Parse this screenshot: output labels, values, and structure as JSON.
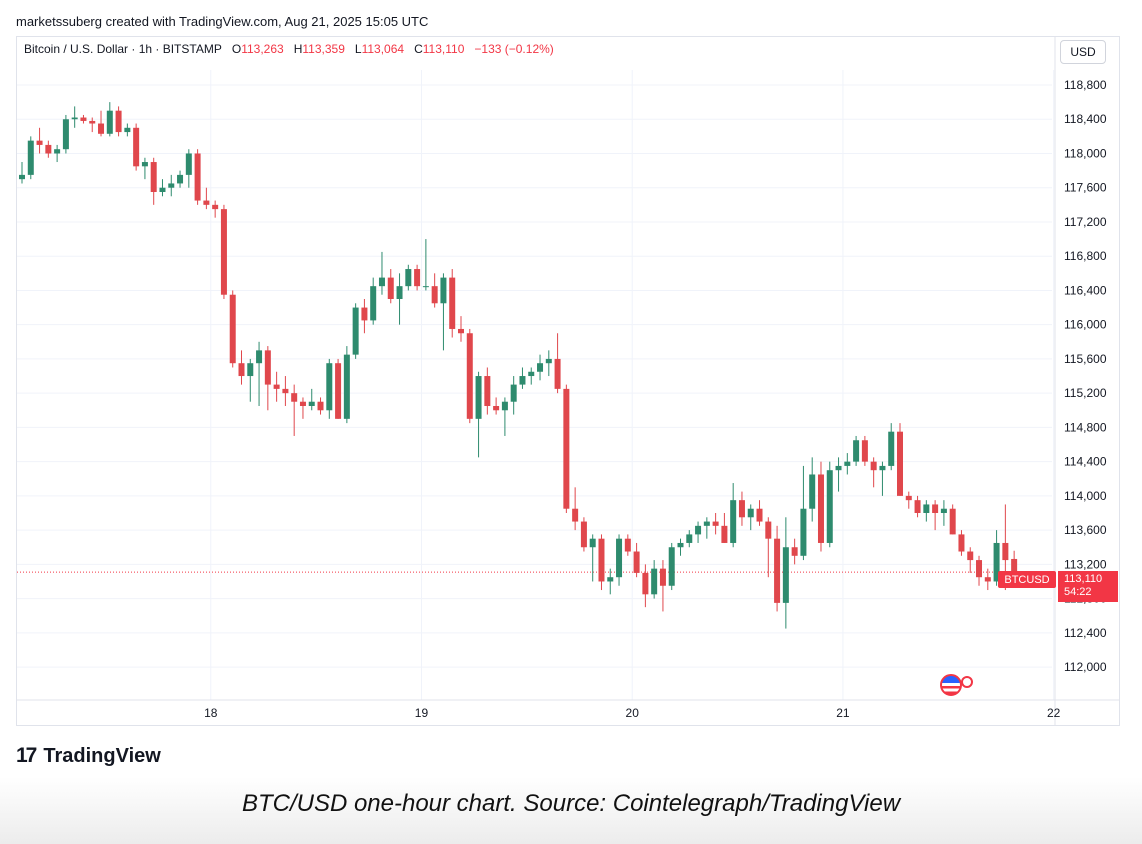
{
  "header": {
    "created_by": "marketssuberg created with TradingView.com, Aug 21, 2025 15:05 UTC"
  },
  "legend": {
    "symbol": "Bitcoin / U.S. Dollar · 1h · BITSTAMP",
    "o_label": "O",
    "o_value": "113,263",
    "h_label": "H",
    "h_value": "113,359",
    "l_label": "L",
    "l_value": "113,064",
    "c_label": "C",
    "c_value": "113,110",
    "change": "−133 (−0.12%)"
  },
  "currency_button": "USD",
  "last_price": {
    "symbol": "BTCUSD",
    "price": "113,110",
    "countdown": "54:22"
  },
  "branding": {
    "logo_mark": "17",
    "logo_text": "TradingView"
  },
  "caption": "BTC/USD one-hour chart. Source: Cointelegraph/TradingView",
  "colors": {
    "up": "#26a69a",
    "down": "#ef5350",
    "up_body": "#2e8b6e",
    "down_body": "#e0474c",
    "grid": "#f0f3fa",
    "text": "#131722"
  },
  "icons": {
    "event_icon": "us-flag-icon"
  },
  "chart_data": {
    "type": "candlestick",
    "title": "",
    "xlabel": "",
    "ylabel": "",
    "ylim": [
      111700,
      119200
    ],
    "y_ticks": [
      112000,
      112400,
      112800,
      113200,
      113600,
      114000,
      114400,
      114800,
      115200,
      115600,
      116000,
      116400,
      116800,
      117200,
      117600,
      118000,
      118400,
      118800
    ],
    "y_tick_labels": [
      "112,000",
      "112,400",
      "112,800",
      "113,200",
      "113,600",
      "114,000",
      "114,400",
      "114,800",
      "115,200",
      "115,600",
      "116,000",
      "116,400",
      "116,800",
      "117,200",
      "117,600",
      "118,000",
      "118,400",
      "118,800"
    ],
    "x_ticks": [
      {
        "label": "18",
        "index": 21.5
      },
      {
        "label": "19",
        "index": 45.5
      },
      {
        "label": "20",
        "index": 69.5
      },
      {
        "label": "21",
        "index": 93.5
      },
      {
        "label": "22",
        "index": 117.5
      }
    ],
    "last_close": 113110,
    "candles": [
      {
        "o": 117700,
        "h": 117900,
        "l": 117650,
        "c": 117750
      },
      {
        "o": 117750,
        "h": 118200,
        "l": 117700,
        "c": 118150
      },
      {
        "o": 118150,
        "h": 118300,
        "l": 118000,
        "c": 118100
      },
      {
        "o": 118100,
        "h": 118150,
        "l": 117950,
        "c": 118000
      },
      {
        "o": 118000,
        "h": 118100,
        "l": 117900,
        "c": 118050
      },
      {
        "o": 118050,
        "h": 118450,
        "l": 118000,
        "c": 118400
      },
      {
        "o": 118400,
        "h": 118550,
        "l": 118300,
        "c": 118420
      },
      {
        "o": 118420,
        "h": 118450,
        "l": 118350,
        "c": 118380
      },
      {
        "o": 118380,
        "h": 118420,
        "l": 118250,
        "c": 118350
      },
      {
        "o": 118350,
        "h": 118500,
        "l": 118200,
        "c": 118230
      },
      {
        "o": 118230,
        "h": 118600,
        "l": 118200,
        "c": 118500
      },
      {
        "o": 118500,
        "h": 118550,
        "l": 118200,
        "c": 118250
      },
      {
        "o": 118250,
        "h": 118350,
        "l": 118200,
        "c": 118300
      },
      {
        "o": 118300,
        "h": 118350,
        "l": 117800,
        "c": 117850
      },
      {
        "o": 117850,
        "h": 117950,
        "l": 117700,
        "c": 117900
      },
      {
        "o": 117900,
        "h": 117950,
        "l": 117400,
        "c": 117550
      },
      {
        "o": 117550,
        "h": 117700,
        "l": 117500,
        "c": 117600
      },
      {
        "o": 117600,
        "h": 117750,
        "l": 117500,
        "c": 117650
      },
      {
        "o": 117650,
        "h": 117800,
        "l": 117600,
        "c": 117750
      },
      {
        "o": 117750,
        "h": 118050,
        "l": 117600,
        "c": 118000
      },
      {
        "o": 118000,
        "h": 118050,
        "l": 117400,
        "c": 117450
      },
      {
        "o": 117450,
        "h": 117600,
        "l": 117350,
        "c": 117400
      },
      {
        "o": 117400,
        "h": 117450,
        "l": 117250,
        "c": 117350
      },
      {
        "o": 117350,
        "h": 117400,
        "l": 116300,
        "c": 116350
      },
      {
        "o": 116350,
        "h": 116400,
        "l": 115500,
        "c": 115550
      },
      {
        "o": 115550,
        "h": 115700,
        "l": 115300,
        "c": 115400
      },
      {
        "o": 115400,
        "h": 115600,
        "l": 115100,
        "c": 115550
      },
      {
        "o": 115550,
        "h": 115800,
        "l": 115050,
        "c": 115700
      },
      {
        "o": 115700,
        "h": 115750,
        "l": 115000,
        "c": 115300
      },
      {
        "o": 115300,
        "h": 115450,
        "l": 115100,
        "c": 115250
      },
      {
        "o": 115250,
        "h": 115400,
        "l": 115050,
        "c": 115200
      },
      {
        "o": 115200,
        "h": 115300,
        "l": 114700,
        "c": 115100
      },
      {
        "o": 115100,
        "h": 115150,
        "l": 114900,
        "c": 115050
      },
      {
        "o": 115050,
        "h": 115250,
        "l": 115000,
        "c": 115100
      },
      {
        "o": 115100,
        "h": 115150,
        "l": 114950,
        "c": 115000
      },
      {
        "o": 115000,
        "h": 115600,
        "l": 114900,
        "c": 115550
      },
      {
        "o": 115550,
        "h": 115600,
        "l": 114900,
        "c": 114900
      },
      {
        "o": 114900,
        "h": 115750,
        "l": 114850,
        "c": 115650
      },
      {
        "o": 115650,
        "h": 116250,
        "l": 115600,
        "c": 116200
      },
      {
        "o": 116200,
        "h": 116300,
        "l": 115900,
        "c": 116050
      },
      {
        "o": 116050,
        "h": 116550,
        "l": 116000,
        "c": 116450
      },
      {
        "o": 116450,
        "h": 116850,
        "l": 116350,
        "c": 116550
      },
      {
        "o": 116550,
        "h": 116650,
        "l": 116250,
        "c": 116300
      },
      {
        "o": 116300,
        "h": 116600,
        "l": 116000,
        "c": 116450
      },
      {
        "o": 116450,
        "h": 116700,
        "l": 116400,
        "c": 116650
      },
      {
        "o": 116650,
        "h": 116700,
        "l": 116400,
        "c": 116450
      },
      {
        "o": 116450,
        "h": 117000,
        "l": 116400,
        "c": 116450
      },
      {
        "o": 116450,
        "h": 116600,
        "l": 116200,
        "c": 116250
      },
      {
        "o": 116250,
        "h": 116600,
        "l": 115700,
        "c": 116550
      },
      {
        "o": 116550,
        "h": 116650,
        "l": 115850,
        "c": 115950
      },
      {
        "o": 115950,
        "h": 116100,
        "l": 115800,
        "c": 115900
      },
      {
        "o": 115900,
        "h": 115950,
        "l": 114850,
        "c": 114900
      },
      {
        "o": 114900,
        "h": 115450,
        "l": 114450,
        "c": 115400
      },
      {
        "o": 115400,
        "h": 115500,
        "l": 114950,
        "c": 115050
      },
      {
        "o": 115050,
        "h": 115150,
        "l": 114950,
        "c": 115000
      },
      {
        "o": 115000,
        "h": 115150,
        "l": 114700,
        "c": 115100
      },
      {
        "o": 115100,
        "h": 115400,
        "l": 114950,
        "c": 115300
      },
      {
        "o": 115300,
        "h": 115500,
        "l": 115250,
        "c": 115400
      },
      {
        "o": 115400,
        "h": 115500,
        "l": 115300,
        "c": 115450
      },
      {
        "o": 115450,
        "h": 115650,
        "l": 115350,
        "c": 115550
      },
      {
        "o": 115550,
        "h": 115700,
        "l": 115400,
        "c": 115600
      },
      {
        "o": 115600,
        "h": 115900,
        "l": 115200,
        "c": 115250
      },
      {
        "o": 115250,
        "h": 115300,
        "l": 113800,
        "c": 113850
      },
      {
        "o": 113850,
        "h": 114100,
        "l": 113600,
        "c": 113700
      },
      {
        "o": 113700,
        "h": 113750,
        "l": 113350,
        "c": 113400
      },
      {
        "o": 113400,
        "h": 113550,
        "l": 113000,
        "c": 113500
      },
      {
        "o": 113500,
        "h": 113550,
        "l": 112900,
        "c": 113000
      },
      {
        "o": 113000,
        "h": 113150,
        "l": 112850,
        "c": 113050
      },
      {
        "o": 113050,
        "h": 113550,
        "l": 112950,
        "c": 113500
      },
      {
        "o": 113500,
        "h": 113550,
        "l": 113300,
        "c": 113350
      },
      {
        "o": 113350,
        "h": 113450,
        "l": 113050,
        "c": 113100
      },
      {
        "o": 113100,
        "h": 113200,
        "l": 112700,
        "c": 112850
      },
      {
        "o": 112850,
        "h": 113250,
        "l": 112800,
        "c": 113150
      },
      {
        "o": 113150,
        "h": 113250,
        "l": 112650,
        "c": 112950
      },
      {
        "o": 112950,
        "h": 113450,
        "l": 112900,
        "c": 113400
      },
      {
        "o": 113400,
        "h": 113500,
        "l": 113300,
        "c": 113450
      },
      {
        "o": 113450,
        "h": 113600,
        "l": 113400,
        "c": 113550
      },
      {
        "o": 113550,
        "h": 113700,
        "l": 113450,
        "c": 113650
      },
      {
        "o": 113650,
        "h": 113750,
        "l": 113500,
        "c": 113700
      },
      {
        "o": 113700,
        "h": 113800,
        "l": 113550,
        "c": 113650
      },
      {
        "o": 113650,
        "h": 113800,
        "l": 113450,
        "c": 113450
      },
      {
        "o": 113450,
        "h": 114150,
        "l": 113400,
        "c": 113950
      },
      {
        "o": 113950,
        "h": 114050,
        "l": 113650,
        "c": 113750
      },
      {
        "o": 113750,
        "h": 113900,
        "l": 113600,
        "c": 113850
      },
      {
        "o": 113850,
        "h": 113950,
        "l": 113650,
        "c": 113700
      },
      {
        "o": 113700,
        "h": 113750,
        "l": 113050,
        "c": 113500
      },
      {
        "o": 113500,
        "h": 113650,
        "l": 112650,
        "c": 112750
      },
      {
        "o": 112750,
        "h": 113750,
        "l": 112450,
        "c": 113400
      },
      {
        "o": 113400,
        "h": 113500,
        "l": 113200,
        "c": 113300
      },
      {
        "o": 113300,
        "h": 114350,
        "l": 113250,
        "c": 113850
      },
      {
        "o": 113850,
        "h": 114450,
        "l": 113700,
        "c": 114250
      },
      {
        "o": 114250,
        "h": 114400,
        "l": 113350,
        "c": 113450
      },
      {
        "o": 113450,
        "h": 114400,
        "l": 113400,
        "c": 114300
      },
      {
        "o": 114300,
        "h": 114450,
        "l": 114050,
        "c": 114350
      },
      {
        "o": 114350,
        "h": 114500,
        "l": 114250,
        "c": 114400
      },
      {
        "o": 114400,
        "h": 114700,
        "l": 114350,
        "c": 114650
      },
      {
        "o": 114650,
        "h": 114700,
        "l": 114350,
        "c": 114400
      },
      {
        "o": 114400,
        "h": 114450,
        "l": 114100,
        "c": 114300
      },
      {
        "o": 114300,
        "h": 114400,
        "l": 114000,
        "c": 114350
      },
      {
        "o": 114350,
        "h": 114850,
        "l": 114300,
        "c": 114750
      },
      {
        "o": 114750,
        "h": 114850,
        "l": 114000,
        "c": 114000
      },
      {
        "o": 114000,
        "h": 114050,
        "l": 113850,
        "c": 113950
      },
      {
        "o": 113950,
        "h": 114000,
        "l": 113750,
        "c": 113800
      },
      {
        "o": 113800,
        "h": 113950,
        "l": 113700,
        "c": 113900
      },
      {
        "o": 113900,
        "h": 113950,
        "l": 113600,
        "c": 113800
      },
      {
        "o": 113800,
        "h": 113950,
        "l": 113650,
        "c": 113850
      },
      {
        "o": 113850,
        "h": 113900,
        "l": 113550,
        "c": 113550
      },
      {
        "o": 113550,
        "h": 113600,
        "l": 113300,
        "c": 113350
      },
      {
        "o": 113350,
        "h": 113400,
        "l": 113100,
        "c": 113250
      },
      {
        "o": 113250,
        "h": 113300,
        "l": 112950,
        "c": 113050
      },
      {
        "o": 113050,
        "h": 113150,
        "l": 112900,
        "c": 113000
      },
      {
        "o": 113000,
        "h": 113600,
        "l": 112950,
        "c": 113450
      },
      {
        "o": 113450,
        "h": 113900,
        "l": 112900,
        "c": 113250
      },
      {
        "o": 113263,
        "h": 113359,
        "l": 113064,
        "c": 113110
      }
    ]
  }
}
